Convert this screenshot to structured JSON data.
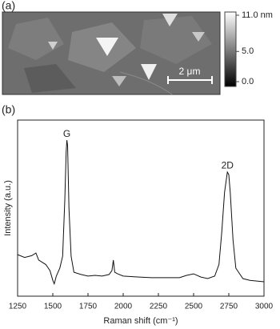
{
  "panel_a": {
    "label": "(a)",
    "scale_bar": "2 μm",
    "colorbar": {
      "lim": [
        0,
        11
      ],
      "ticks": [
        {
          "value": 11,
          "label": "11.0 nm"
        },
        {
          "value": 5,
          "label": "5.0"
        },
        {
          "value": 0,
          "label": "0.0"
        }
      ]
    }
  },
  "chart_data": {
    "type": "line",
    "panel_label": "(b)",
    "xlabel": "Raman shift (cm⁻¹)",
    "ylabel": "Intensity (a.u.)",
    "color": "#111111",
    "x": [
      1250,
      1300,
      1350,
      1380,
      1400,
      1450,
      1480,
      1500,
      1510,
      1525,
      1550,
      1570,
      1585,
      1595,
      1600,
      1605,
      1615,
      1630,
      1650,
      1700,
      1750,
      1800,
      1850,
      1900,
      1920,
      1930,
      1940,
      1960,
      2000,
      2100,
      2200,
      2300,
      2400,
      2450,
      2500,
      2550,
      2600,
      2650,
      2680,
      2700,
      2720,
      2740,
      2750,
      2760,
      2780,
      2800,
      2850,
      2900,
      2950,
      3000
    ],
    "values": [
      23.6,
      22,
      23,
      24.5,
      20.5,
      18,
      14.5,
      9,
      7,
      11.4,
      16,
      22.7,
      54.5,
      81.8,
      88.6,
      85.5,
      50,
      22.7,
      13.6,
      12.3,
      11.4,
      11.8,
      11.4,
      12.3,
      14.5,
      20.5,
      13.6,
      12.7,
      11.4,
      10.9,
      10.5,
      10.5,
      10.5,
      11.8,
      12.7,
      10.9,
      10,
      11.4,
      18,
      36.4,
      59,
      70.5,
      69,
      59,
      31.8,
      15.9,
      10,
      9,
      8.6,
      8.2
    ],
    "xlim": [
      1250,
      3000
    ],
    "ylim": [
      0,
      100
    ],
    "xticks": [
      1250,
      1500,
      1750,
      2000,
      2250,
      2500,
      2750,
      3000
    ],
    "annotations": [
      {
        "text": "G",
        "x": 1600,
        "y": 92
      },
      {
        "text": "2D",
        "x": 2740,
        "y": 74
      }
    ]
  }
}
